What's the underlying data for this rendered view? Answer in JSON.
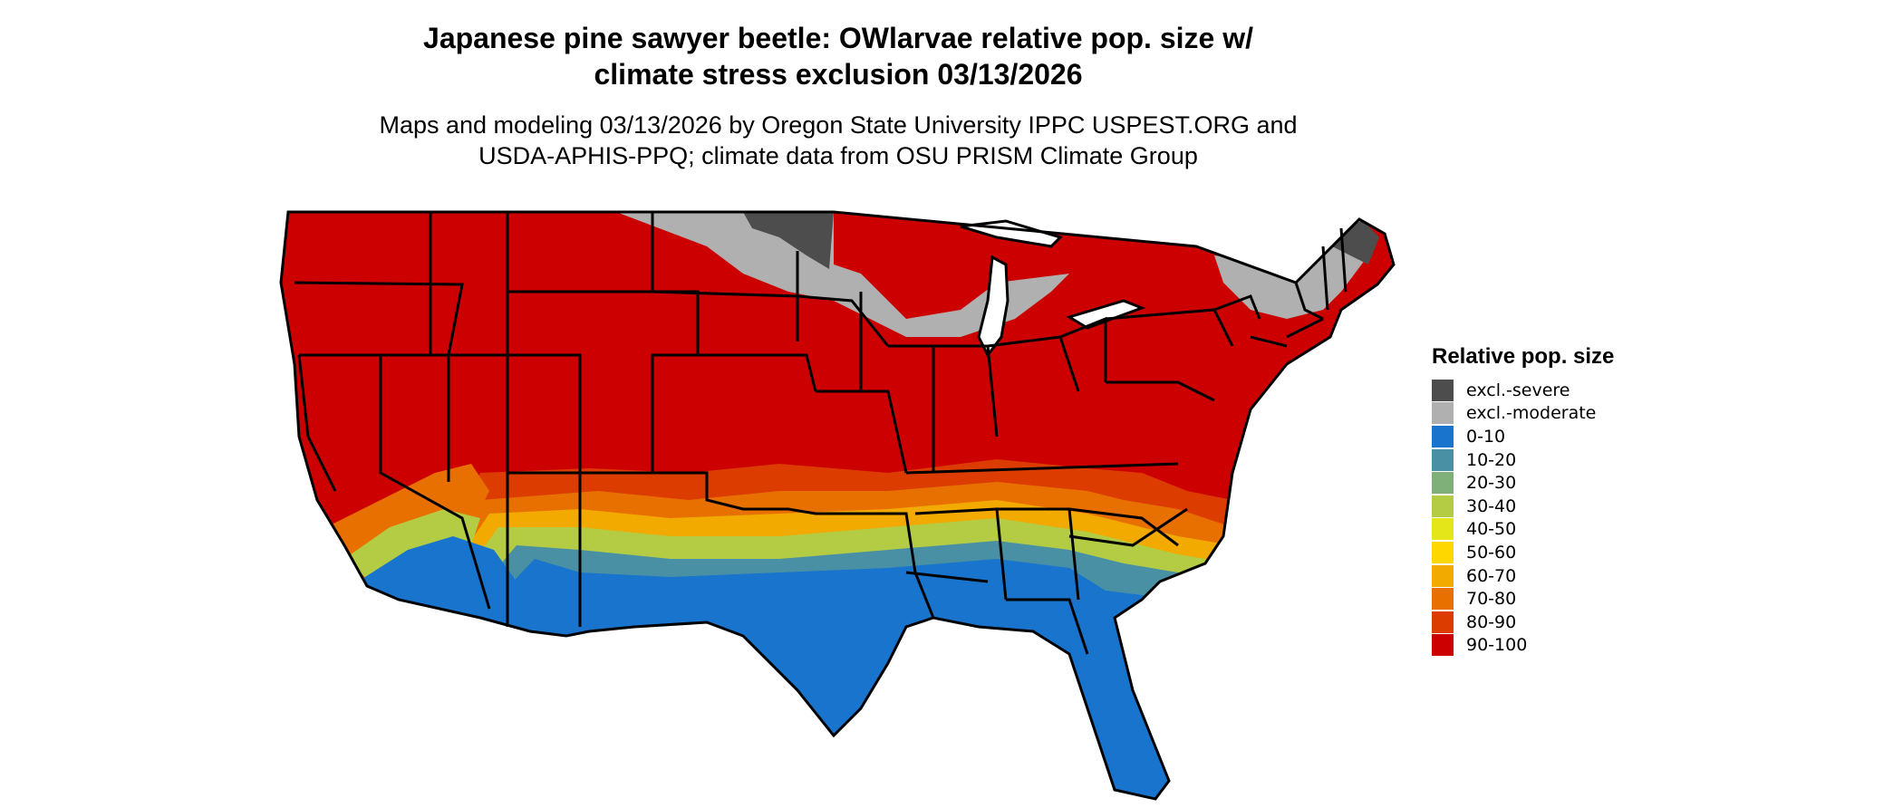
{
  "header": {
    "title_line1": "Japanese pine sawyer beetle: OWlarvae relative pop. size w/",
    "title_line2": "climate stress exclusion 03/13/2026",
    "subtitle_line1": "Maps and modeling 03/13/2026 by Oregon State University IPPC USPEST.ORG and",
    "subtitle_line2": "USDA-APHIS-PPQ; climate data from OSU PRISM Climate Group"
  },
  "legend": {
    "title": "Relative pop. size",
    "items": [
      {
        "label": "excl.-severe",
        "color": "#4d4d4d"
      },
      {
        "label": "excl.-moderate",
        "color": "#b0b0b0"
      },
      {
        "label": "0-10",
        "color": "#1874cd"
      },
      {
        "label": "10-20",
        "color": "#4a90a4"
      },
      {
        "label": "20-30",
        "color": "#7fb07a"
      },
      {
        "label": "30-40",
        "color": "#b3cc44"
      },
      {
        "label": "40-50",
        "color": "#e4e61a"
      },
      {
        "label": "50-60",
        "color": "#ffd700"
      },
      {
        "label": "60-70",
        "color": "#f2a900"
      },
      {
        "label": "70-80",
        "color": "#e87000"
      },
      {
        "label": "80-90",
        "color": "#dd3c00"
      },
      {
        "label": "90-100",
        "color": "#cc0000"
      }
    ]
  }
}
